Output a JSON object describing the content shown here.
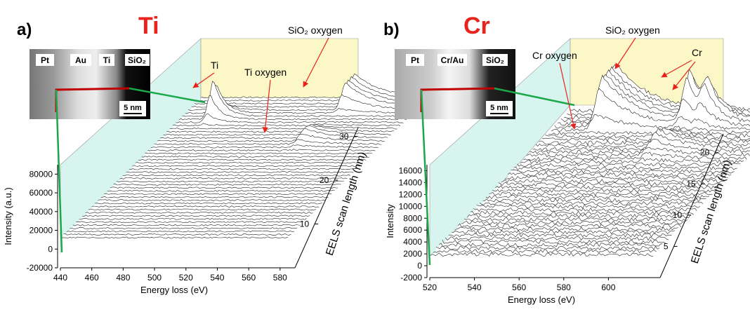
{
  "colors": {
    "title_element": "#e8231c",
    "arrow": "#e8231c",
    "back_wall": "#fbf7c6",
    "side_wall": "#d8f4ee",
    "linescan": "#1aa84a",
    "scan_marker": "#c00000"
  },
  "chart_data": [
    {
      "type": "waterfall",
      "panel_label": "a)",
      "title": "Ti",
      "xlabel": "Energy loss (eV)",
      "ylabel": "Intensity (a.u.)",
      "zlabel": "EELS scan length (nm)",
      "x_ticks": [
        "440",
        "460",
        "480",
        "500",
        "520",
        "540",
        "560",
        "580"
      ],
      "y_ticks": [
        "-20000",
        "0",
        "20000",
        "40000",
        "60000",
        "80000"
      ],
      "z_ticks": [
        "10",
        "20",
        "30"
      ],
      "xlim": [
        440,
        585
      ],
      "ylim": [
        -20000,
        90000
      ],
      "zlim": [
        0,
        32
      ],
      "n_spectra": 46,
      "peaks": [
        {
          "name": "Ti",
          "x": 460,
          "amp": 46000,
          "z_center": 0.87,
          "z_width": 0.04
        },
        {
          "name": "Ti oxygen",
          "x": 532,
          "amp": 12000,
          "z_center": 0.72,
          "z_width": 0.06
        },
        {
          "name": "SiO2 oxygen",
          "x": 538,
          "amp": 30000,
          "z_start": 0.93
        }
      ],
      "annotations": [
        "Ti",
        "Ti oxygen",
        "SiO₂ oxygen"
      ],
      "inset": {
        "labels": [
          "Pt",
          "Au",
          "Ti",
          "SiO₂"
        ],
        "scale": "5 nm"
      }
    },
    {
      "type": "waterfall",
      "panel_label": "b)",
      "title": "Cr",
      "xlabel": "Energy loss (eV)",
      "ylabel": "Intensity",
      "zlabel": "EELS scan length (nm)",
      "x_ticks": [
        "520",
        "540",
        "560",
        "580",
        "600"
      ],
      "y_ticks": [
        "-2000",
        "0",
        "2000",
        "4000",
        "6000",
        "8000",
        "10000",
        "12000",
        "14000",
        "16000"
      ],
      "z_ticks": [
        "5",
        "10",
        "15",
        "20"
      ],
      "xlim": [
        520,
        620
      ],
      "ylim": [
        -2000,
        17000
      ],
      "zlim": [
        0,
        23
      ],
      "n_spectra": 46,
      "peaks": [
        {
          "name": "Cr oxygen",
          "x": 575,
          "amp": 3000,
          "z_center": 0.75,
          "z_width": 0.08
        },
        {
          "name": "SiO2 oxygen",
          "x": 540,
          "amp": 9000,
          "z_start": 0.9
        },
        {
          "name": "Cr L3",
          "x": 578,
          "amp": 9000,
          "z_center": 0.93,
          "z_width": 0.05
        },
        {
          "name": "Cr L2",
          "x": 586,
          "amp": 5500,
          "z_center": 0.93,
          "z_width": 0.05
        }
      ],
      "annotations": [
        "SiO₂ oxygen",
        "Cr oxygen",
        "Cr"
      ],
      "inset": {
        "labels": [
          "Pt",
          "Cr/Au",
          "SiO₂"
        ],
        "scale": "5 nm"
      }
    }
  ]
}
